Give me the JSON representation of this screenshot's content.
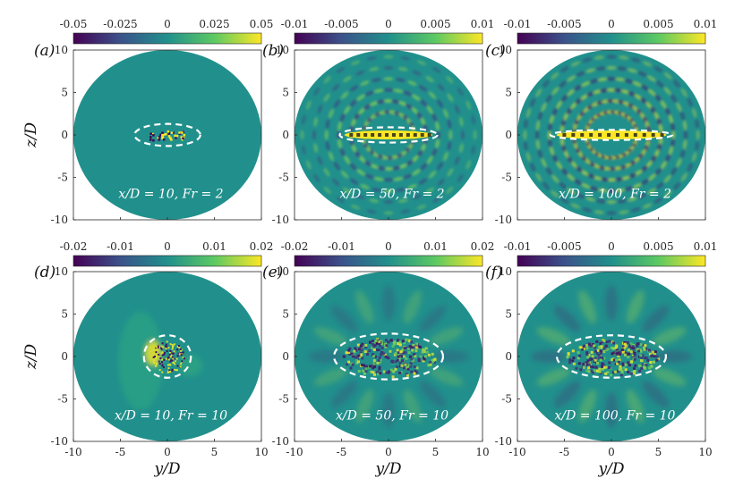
{
  "figure": {
    "x_axis_label": "y/D",
    "y_axis_label": "z/D",
    "axis_ticks": [
      "-10",
      "-5",
      "0",
      "5",
      "10"
    ],
    "panels": [
      {
        "label": "(a)",
        "annotation": "x/D = 10, Fr = 2",
        "colorbar_ticks": [
          "-0.05",
          "-0.025",
          "0",
          "0.025",
          "0.05"
        ],
        "ellipse": {
          "cy": 0,
          "cz": 0,
          "ry": 3.5,
          "rz": 1.3
        },
        "pattern": {
          "kind": "core",
          "amplitude": 0.35,
          "bands": 0
        }
      },
      {
        "label": "(b)",
        "annotation": "x/D = 50, Fr = 2",
        "colorbar_ticks": [
          "-0.01",
          "-0.005",
          "0",
          "0.005",
          "0.01"
        ],
        "ellipse": {
          "cy": 0,
          "cz": 0,
          "ry": 5.2,
          "rz": 0.9
        },
        "pattern": {
          "kind": "waves",
          "amplitude": 0.7,
          "bands": 1
        }
      },
      {
        "label": "(c)",
        "annotation": "x/D = 100, Fr = 2",
        "colorbar_ticks": [
          "-0.01",
          "-0.005",
          "0",
          "0.005",
          "0.01"
        ],
        "ellipse": {
          "cy": 0,
          "cz": 0,
          "ry": 6.5,
          "rz": 0.6
        },
        "pattern": {
          "kind": "waves",
          "amplitude": 0.9,
          "bands": 1
        }
      },
      {
        "label": "(d)",
        "annotation": "x/D = 10, Fr = 10",
        "colorbar_ticks": [
          "-0.02",
          "-0.01",
          "0",
          "0.01",
          "0.02"
        ],
        "ellipse": {
          "cy": 0,
          "cz": 0,
          "ry": 2.5,
          "rz": 2.5
        },
        "pattern": {
          "kind": "blob",
          "amplitude": 0.6,
          "bands": 0
        }
      },
      {
        "label": "(e)",
        "annotation": "x/D = 50, Fr = 10",
        "colorbar_ticks": [
          "-0.02",
          "-0.01",
          "0",
          "0.01",
          "0.02"
        ],
        "ellipse": {
          "cy": 0,
          "cz": 0,
          "ry": 5.8,
          "rz": 2.7
        },
        "pattern": {
          "kind": "turb",
          "amplitude": 0.7,
          "bands": 0
        }
      },
      {
        "label": "(f)",
        "annotation": "x/D = 100, Fr = 10",
        "colorbar_ticks": [
          "-0.01",
          "-0.005",
          "0",
          "0.005",
          "0.01"
        ],
        "ellipse": {
          "cy": 0,
          "cz": 0,
          "ry": 5.8,
          "rz": 2.5
        },
        "pattern": {
          "kind": "turb",
          "amplitude": 0.9,
          "bands": 0
        }
      }
    ],
    "colormap": [
      "#440154",
      "#3b528b",
      "#21908c",
      "#5dc963",
      "#fde725"
    ],
    "background_field_color": "#21908c"
  }
}
